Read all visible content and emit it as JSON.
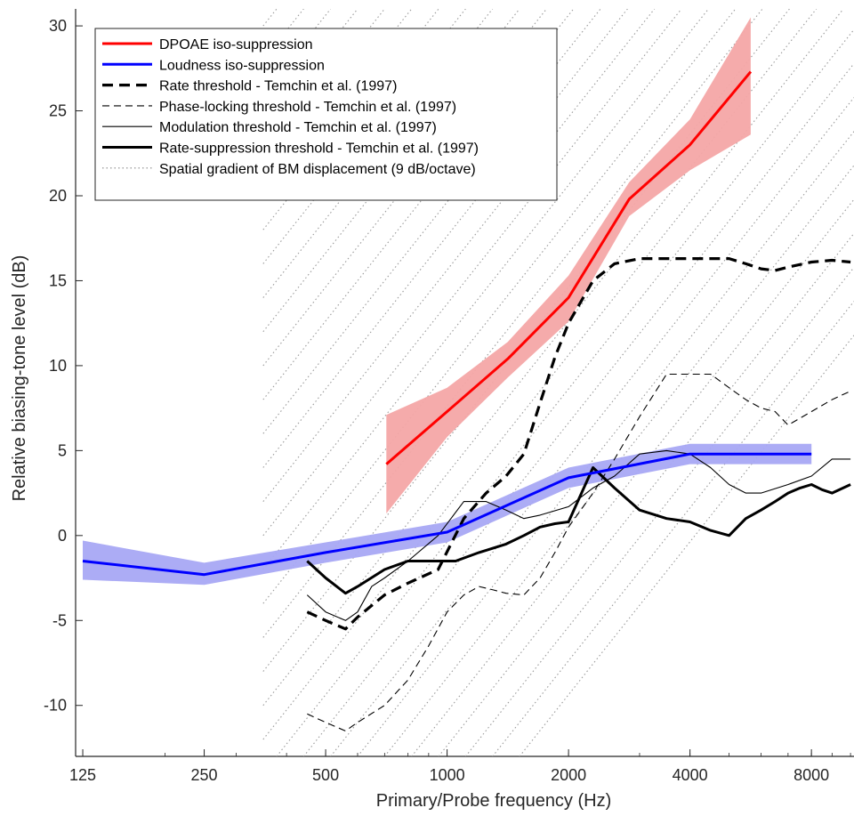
{
  "chart_data": {
    "type": "line",
    "xlabel": "Primary/Probe frequency (Hz)",
    "ylabel": "Relative biasing-tone level (dB)",
    "x_scale": "log2",
    "xlim": [
      120,
      10200
    ],
    "ylim": [
      -13,
      31
    ],
    "xticks": [
      125,
      250,
      500,
      1000,
      2000,
      4000,
      8000
    ],
    "xtick_labels": [
      "125",
      "250",
      "500",
      "1000",
      "2000",
      "4000",
      "8000"
    ],
    "yticks": [
      -10,
      -5,
      0,
      5,
      10,
      15,
      20,
      25,
      30
    ],
    "ytick_labels": [
      "-10",
      "-5",
      "0",
      "5",
      "10",
      "15",
      "20",
      "25",
      "30"
    ],
    "grid": false,
    "legend_position": "top-left",
    "series": [
      {
        "name": "DPOAE iso-suppression",
        "color": "#ff0000",
        "band_color": "#f4a6a6",
        "style": "thick",
        "x": [
          707,
          1000,
          1414,
          2000,
          2828,
          4000,
          5657
        ],
        "y": [
          4.2,
          7.3,
          10.4,
          14.0,
          19.8,
          23.0,
          27.3
        ],
        "band_lower": [
          1.3,
          5.8,
          9.3,
          12.6,
          18.8,
          21.5,
          23.6
        ],
        "band_upper": [
          7.1,
          8.7,
          11.4,
          15.3,
          20.8,
          24.5,
          30.5
        ]
      },
      {
        "name": "Loudness iso-suppression",
        "color": "#0000ff",
        "band_color": "#a8a8f4",
        "style": "thick",
        "x": [
          125,
          250,
          500,
          1000,
          2000,
          4000,
          8000
        ],
        "y": [
          -1.5,
          -2.3,
          -1.0,
          0.2,
          3.4,
          4.8,
          4.8
        ],
        "band_lower": [
          -2.6,
          -2.9,
          -1.6,
          -0.4,
          2.8,
          4.2,
          4.2
        ],
        "band_upper": [
          -0.3,
          -1.6,
          -0.4,
          0.8,
          4.0,
          5.4,
          5.4
        ]
      },
      {
        "name": "Rate threshold - Temchin et al. (1997)",
        "color": "#000000",
        "style": "thick-dashed",
        "x": [
          450,
          500,
          560,
          600,
          700,
          800,
          950,
          1100,
          1250,
          1400,
          1550,
          1700,
          1850,
          2000,
          2300,
          2600,
          3000,
          3500,
          4000,
          4500,
          5000,
          5500,
          6000,
          6500,
          7000,
          8000,
          9000,
          10000
        ],
        "y": [
          -4.5,
          -5.0,
          -5.5,
          -4.8,
          -3.5,
          -2.8,
          -2.0,
          1.0,
          2.5,
          3.5,
          4.8,
          7.8,
          10.5,
          12.5,
          15.0,
          16.0,
          16.3,
          16.3,
          16.3,
          16.3,
          16.3,
          16.0,
          15.7,
          15.6,
          15.8,
          16.1,
          16.2,
          16.1
        ]
      },
      {
        "name": "Phase-locking threshold - Temchin et al. (1997)",
        "color": "#000000",
        "style": "thin-dashed",
        "x": [
          450,
          500,
          560,
          600,
          700,
          800,
          900,
          1000,
          1100,
          1200,
          1300,
          1400,
          1550,
          1700,
          1850,
          2000,
          2300,
          2600,
          3000,
          3500,
          4000,
          4500,
          5000,
          5500,
          6000,
          6500,
          7000,
          8000,
          9000,
          10000
        ],
        "y": [
          -10.5,
          -11.0,
          -11.5,
          -11.0,
          -10.0,
          -8.5,
          -6.5,
          -4.5,
          -3.5,
          -3.0,
          -3.2,
          -3.4,
          -3.5,
          -2.5,
          -1.0,
          0.5,
          2.5,
          4.5,
          7.0,
          9.5,
          9.5,
          9.5,
          8.7,
          8.0,
          7.5,
          7.3,
          6.5,
          7.3,
          8.0,
          8.5
        ]
      },
      {
        "name": "Modulation threshold - Temchin et al. (1997)",
        "color": "#000000",
        "style": "thin",
        "x": [
          450,
          500,
          560,
          600,
          650,
          700,
          800,
          950,
          1100,
          1250,
          1400,
          1550,
          1700,
          2000,
          2300,
          2600,
          3000,
          3500,
          4000,
          4500,
          5000,
          5500,
          6000,
          7000,
          8000,
          9000,
          10000
        ],
        "y": [
          -3.5,
          -4.5,
          -5.0,
          -4.5,
          -3.0,
          -2.5,
          -1.5,
          0.0,
          2.0,
          2.0,
          1.5,
          1.0,
          1.2,
          1.7,
          2.8,
          3.5,
          4.8,
          5.0,
          4.8,
          4.0,
          3.0,
          2.5,
          2.5,
          3.0,
          3.5,
          4.5,
          4.5
        ]
      },
      {
        "name": "Rate-suppression threshold - Temchin et al. (1997)",
        "color": "#000000",
        "style": "thick",
        "x": [
          450,
          500,
          560,
          600,
          700,
          800,
          950,
          1050,
          1200,
          1400,
          1550,
          1700,
          1850,
          2000,
          2300,
          2600,
          3000,
          3500,
          4000,
          4500,
          5000,
          5500,
          6000,
          6500,
          7000,
          7500,
          8000,
          8500,
          9000,
          10000
        ],
        "y": [
          -1.5,
          -2.5,
          -3.4,
          -3.0,
          -2.0,
          -1.5,
          -1.5,
          -1.5,
          -1.0,
          -0.5,
          0.0,
          0.5,
          0.7,
          0.8,
          4.0,
          2.8,
          1.5,
          1.0,
          0.8,
          0.3,
          0.0,
          1.0,
          1.5,
          2.0,
          2.5,
          2.8,
          3.0,
          2.7,
          2.5,
          3.0
        ]
      },
      {
        "name": "Spatial gradient of BM displacement (9 dB/octave)",
        "color": "#9a9a9a",
        "style": "dotted",
        "slope_db_per_octave": 9,
        "x_min": 350,
        "y_max": 31
      }
    ]
  }
}
